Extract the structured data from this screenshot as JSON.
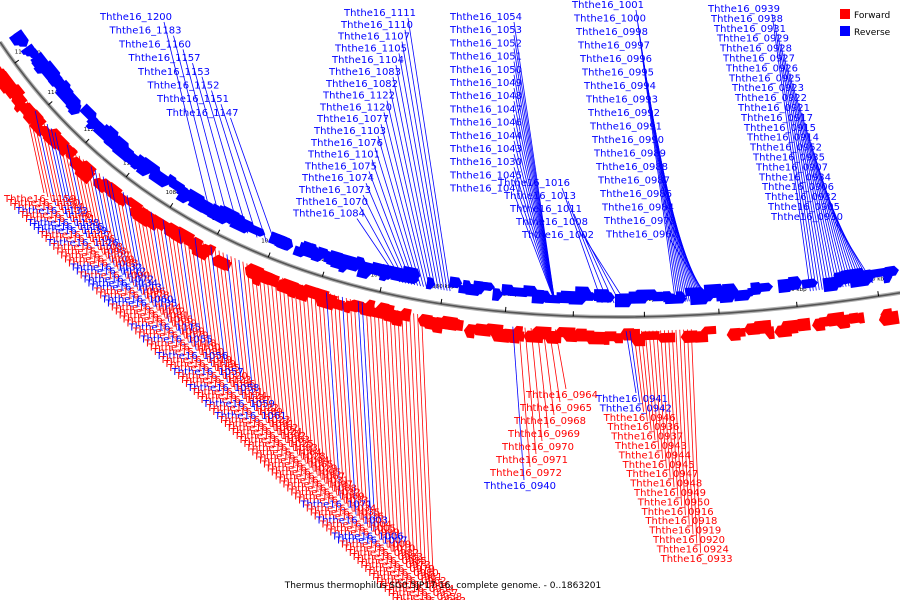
{
  "caption": "Thermus thermophilus SG0.5JP17-16, complete genome. - 0..1863201",
  "legend": [
    {
      "label": "Forward",
      "color": "#ff0000"
    },
    {
      "label": "Reverse",
      "color": "#0000ff"
    }
  ],
  "ticks": [
    "1160 kbp",
    "1140 kbp",
    "1120 kbp",
    "1100 kbp",
    "1080 kbp",
    "1060 kbp",
    "1040 kbp",
    "1020 kbp",
    "1000 kbp",
    "980 kbp",
    "960 kbp",
    "940 kbp",
    "920 kbp",
    "900 kbp",
    "880 kbp",
    "860 kbp"
  ],
  "labels": [
    {
      "t": "Ththe16_1200",
      "s": "R"
    },
    {
      "t": "Ththe16_1183",
      "s": "R"
    },
    {
      "t": "Ththe16_1160",
      "s": "R"
    },
    {
      "t": "Ththe16_1157",
      "s": "R"
    },
    {
      "t": "Ththe16_1153",
      "s": "R"
    },
    {
      "t": "Ththe16_1152",
      "s": "R"
    },
    {
      "t": "Ththe16_1151",
      "s": "R"
    },
    {
      "t": "Ththe16_1147",
      "s": "R"
    },
    {
      "t": "Ththe16_1111",
      "s": "R"
    },
    {
      "t": "Ththe16_1110",
      "s": "R"
    },
    {
      "t": "Ththe16_1107",
      "s": "R"
    },
    {
      "t": "Ththe16_1105",
      "s": "R"
    },
    {
      "t": "Ththe16_1104",
      "s": "R"
    },
    {
      "t": "Ththe16_1083",
      "s": "R"
    },
    {
      "t": "Ththe16_1082",
      "s": "R"
    },
    {
      "t": "Ththe16_1122",
      "s": "R"
    },
    {
      "t": "Ththe16_1120",
      "s": "R"
    },
    {
      "t": "Ththe16_1077",
      "s": "R"
    },
    {
      "t": "Ththe16_1103",
      "s": "R"
    },
    {
      "t": "Ththe16_1076",
      "s": "R"
    },
    {
      "t": "Ththe16_1101",
      "s": "R"
    },
    {
      "t": "Ththe16_1075",
      "s": "R"
    },
    {
      "t": "Ththe16_1074",
      "s": "R"
    },
    {
      "t": "Ththe16_1073",
      "s": "R"
    },
    {
      "t": "Ththe16_1070",
      "s": "R"
    },
    {
      "t": "Ththe16_1084",
      "s": "R"
    },
    {
      "t": "Ththe16_1054",
      "s": "R"
    },
    {
      "t": "Ththe16_1053",
      "s": "R"
    },
    {
      "t": "Ththe16_1052",
      "s": "R"
    },
    {
      "t": "Ththe16_1051",
      "s": "R"
    },
    {
      "t": "Ththe16_1050",
      "s": "R"
    },
    {
      "t": "Ththe16_1049",
      "s": "R"
    },
    {
      "t": "Ththe16_1048",
      "s": "R"
    },
    {
      "t": "Ththe16_1047",
      "s": "R"
    },
    {
      "t": "Ththe16_1046",
      "s": "R"
    },
    {
      "t": "Ththe16_1044",
      "s": "R"
    },
    {
      "t": "Ththe16_1043",
      "s": "R"
    },
    {
      "t": "Ththe16_1030",
      "s": "R"
    },
    {
      "t": "Ththe16_1045",
      "s": "R"
    },
    {
      "t": "Ththe16_1041",
      "s": "R"
    },
    {
      "t": "Ththe16_1016",
      "s": "R"
    },
    {
      "t": "Ththe16_1013",
      "s": "R"
    },
    {
      "t": "Ththe16_1011",
      "s": "R"
    },
    {
      "t": "Ththe16_1008",
      "s": "R"
    },
    {
      "t": "Ththe16_1002",
      "s": "R"
    },
    {
      "t": "Ththe16_1001",
      "s": "R"
    },
    {
      "t": "Ththe16_1000",
      "s": "R"
    },
    {
      "t": "Ththe16_0998",
      "s": "R"
    },
    {
      "t": "Ththe16_0997",
      "s": "R"
    },
    {
      "t": "Ththe16_0996",
      "s": "R"
    },
    {
      "t": "Ththe16_0995",
      "s": "R"
    },
    {
      "t": "Ththe16_0994",
      "s": "R"
    },
    {
      "t": "Ththe16_0993",
      "s": "R"
    },
    {
      "t": "Ththe16_0992",
      "s": "R"
    },
    {
      "t": "Ththe16_0991",
      "s": "R"
    },
    {
      "t": "Ththe16_0990",
      "s": "R"
    },
    {
      "t": "Ththe16_0989",
      "s": "R"
    },
    {
      "t": "Ththe16_0988",
      "s": "R"
    },
    {
      "t": "Ththe16_0987",
      "s": "R"
    },
    {
      "t": "Ththe16_0986",
      "s": "R"
    },
    {
      "t": "Ththe16_0984",
      "s": "R"
    },
    {
      "t": "Ththe16_0978",
      "s": "R"
    },
    {
      "t": "Ththe16_0967",
      "s": "R"
    },
    {
      "t": "Ththe16_0939",
      "s": "R"
    },
    {
      "t": "Ththe16_0938",
      "s": "R"
    },
    {
      "t": "Ththe16_0931",
      "s": "R"
    },
    {
      "t": "Ththe16_0929",
      "s": "R"
    },
    {
      "t": "Ththe16_0928",
      "s": "R"
    },
    {
      "t": "Ththe16_0927",
      "s": "R"
    },
    {
      "t": "Ththe16_0926",
      "s": "R"
    },
    {
      "t": "Ththe16_0925",
      "s": "R"
    },
    {
      "t": "Ththe16_0923",
      "s": "R"
    },
    {
      "t": "Ththe16_0922",
      "s": "R"
    },
    {
      "t": "Ththe16_0921",
      "s": "R"
    },
    {
      "t": "Ththe16_0917",
      "s": "R"
    },
    {
      "t": "Ththe16_0915",
      "s": "R"
    },
    {
      "t": "Ththe16_0914",
      "s": "R"
    },
    {
      "t": "Ththe16_0952",
      "s": "R"
    },
    {
      "t": "Ththe16_0935",
      "s": "R"
    },
    {
      "t": "Ththe16_0907",
      "s": "R"
    },
    {
      "t": "Ththe16_0934",
      "s": "R"
    },
    {
      "t": "Ththe16_0906",
      "s": "R"
    },
    {
      "t": "Ththe16_0932",
      "s": "R"
    },
    {
      "t": "Ththe16_0905",
      "s": "R"
    },
    {
      "t": "Ththe16_0930",
      "s": "R"
    },
    {
      "t": "Ththe16_1159",
      "s": "F"
    },
    {
      "t": "Ththe16_1150",
      "s": "F"
    },
    {
      "t": "Ththe16_1144",
      "s": "F"
    },
    {
      "t": "Ththe16_1133",
      "s": "R"
    },
    {
      "t": "Ththe16_1146",
      "s": "F"
    },
    {
      "t": "Ththe16_1121",
      "s": "F"
    },
    {
      "t": "Ththe16_1138",
      "s": "R"
    },
    {
      "t": "Ththe16_1116",
      "s": "R"
    },
    {
      "t": "Ththe16_1139",
      "s": "R"
    },
    {
      "t": "Ththe16_1117",
      "s": "F"
    },
    {
      "t": "Ththe16_1106",
      "s": "F"
    },
    {
      "t": "Ththe16_1126",
      "s": "R"
    },
    {
      "t": "Ththe16_1108",
      "s": "F"
    },
    {
      "t": "Ththe16_1098",
      "s": "F"
    },
    {
      "t": "Ththe16_1127",
      "s": "F"
    },
    {
      "t": "Ththe16_1109",
      "s": "F"
    },
    {
      "t": "Ththe16_1088",
      "s": "F"
    },
    {
      "t": "Ththe16_1132",
      "s": "R"
    },
    {
      "t": "Ththe16_1112",
      "s": "R"
    },
    {
      "t": "Ththe16_1090",
      "s": "F"
    },
    {
      "t": "Ththe16_1072",
      "s": "R"
    },
    {
      "t": "Ththe16_1134",
      "s": "R"
    },
    {
      "t": "Ththe16_1113",
      "s": "R"
    },
    {
      "t": "Ththe16_1096",
      "s": "F"
    },
    {
      "t": "Ththe16_1078",
      "s": "F"
    },
    {
      "t": "Ththe16_1060",
      "s": "R"
    },
    {
      "t": "Ththe16_1135",
      "s": "R"
    },
    {
      "t": "Ththe16_1114",
      "s": "F"
    },
    {
      "t": "Ththe16_1102",
      "s": "F"
    },
    {
      "t": "Ththe16_1081",
      "s": "F"
    },
    {
      "t": "Ththe16_1066",
      "s": "F"
    },
    {
      "t": "Ththe16_1039",
      "s": "F"
    },
    {
      "t": "Ththe16_1115",
      "s": "R"
    },
    {
      "t": "Ththe16_1099",
      "s": "F"
    },
    {
      "t": "Ththe16_1079",
      "s": "F"
    },
    {
      "t": "Ththe16_1055",
      "s": "R"
    },
    {
      "t": "Ththe16_1118",
      "s": "F"
    },
    {
      "t": "Ththe16_1100",
      "s": "F"
    },
    {
      "t": "Ththe16_1080",
      "s": "F"
    },
    {
      "t": "Ththe16_1056",
      "s": "R"
    },
    {
      "t": "Ththe16_1019",
      "s": "F"
    },
    {
      "t": "Ththe16_1119",
      "s": "F"
    },
    {
      "t": "Ththe16_1085",
      "s": "F"
    },
    {
      "t": "Ththe16_1057",
      "s": "R"
    },
    {
      "t": "Ththe16_1020",
      "s": "F"
    },
    {
      "t": "Ththe16_1123",
      "s": "F"
    },
    {
      "t": "Ththe16_1086",
      "s": "F"
    },
    {
      "t": "Ththe16_1058",
      "s": "R"
    },
    {
      "t": "Ththe16_1021",
      "s": "F"
    },
    {
      "t": "Ththe16_1124",
      "s": "F"
    },
    {
      "t": "Ththe16_1087",
      "s": "F"
    },
    {
      "t": "Ththe16_1059",
      "s": "R"
    },
    {
      "t": "Ththe16_1022",
      "s": "F"
    },
    {
      "t": "Ththe16_1089",
      "s": "F"
    },
    {
      "t": "Ththe16_1061",
      "s": "R"
    },
    {
      "t": "Ththe16_1023",
      "s": "F"
    },
    {
      "t": "Ththe16_1091",
      "s": "F"
    },
    {
      "t": "Ththe16_1062",
      "s": "F"
    },
    {
      "t": "Ththe16_1024",
      "s": "F"
    },
    {
      "t": "Ththe16_1092",
      "s": "F"
    },
    {
      "t": "Ththe16_1063",
      "s": "F"
    },
    {
      "t": "Ththe16_1025",
      "s": "F"
    },
    {
      "t": "Ththe16_1093",
      "s": "F"
    },
    {
      "t": "Ththe16_1064",
      "s": "F"
    },
    {
      "t": "Ththe16_1028",
      "s": "F"
    },
    {
      "t": "Ththe16_1094",
      "s": "F"
    },
    {
      "t": "Ththe16_1065",
      "s": "F"
    },
    {
      "t": "Ththe16_1029",
      "s": "F"
    },
    {
      "t": "Ththe16_1095",
      "s": "F"
    },
    {
      "t": "Ththe16_1067",
      "s": "F"
    },
    {
      "t": "Ththe16_1031",
      "s": "F"
    },
    {
      "t": "Ththe16_1097",
      "s": "F"
    },
    {
      "t": "Ththe16_1068",
      "s": "F"
    },
    {
      "t": "Ththe16_1032",
      "s": "F"
    },
    {
      "t": "Ththe16_1069",
      "s": "F"
    },
    {
      "t": "Ththe16_1033",
      "s": "F"
    },
    {
      "t": "Ththe16_1071",
      "s": "R"
    },
    {
      "t": "Ththe16_1034",
      "s": "F"
    },
    {
      "t": "Ththe16_1035",
      "s": "F"
    },
    {
      "t": "Ththe16_1036",
      "s": "F"
    },
    {
      "t": "Ththe16_1003",
      "s": "R"
    },
    {
      "t": "Ththe16_1004",
      "s": "F"
    },
    {
      "t": "Ththe16_1005",
      "s": "F"
    },
    {
      "t": "Ththe16_0999",
      "s": "F"
    },
    {
      "t": "Ththe16_1006",
      "s": "R"
    },
    {
      "t": "Ththe16_1007",
      "s": "R"
    },
    {
      "t": "Ththe16_1009",
      "s": "F"
    },
    {
      "t": "Ththe16_1010",
      "s": "F"
    },
    {
      "t": "Ththe16_0982",
      "s": "F"
    },
    {
      "t": "Ththe16_0983",
      "s": "F"
    },
    {
      "t": "Ththe16_0985",
      "s": "F"
    },
    {
      "t": "Ththe16_0973",
      "s": "F"
    },
    {
      "t": "Ththe16_0979",
      "s": "F"
    },
    {
      "t": "Ththe16_0980",
      "s": "F"
    },
    {
      "t": "Ththe16_0961",
      "s": "F"
    },
    {
      "t": "Ththe16_0962",
      "s": "F"
    },
    {
      "t": "Ththe16_0966",
      "s": "F"
    },
    {
      "t": "Ththe16_0954",
      "s": "F"
    },
    {
      "t": "Ththe16_0957",
      "s": "F"
    },
    {
      "t": "Ththe16_0958",
      "s": "F"
    },
    {
      "t": "Ththe16_0963",
      "s": "F"
    },
    {
      "t": "Ththe16_0964",
      "s": "F"
    },
    {
      "t": "Ththe16_0965",
      "s": "F"
    },
    {
      "t": "Ththe16_0968",
      "s": "F"
    },
    {
      "t": "Ththe16_0969",
      "s": "F"
    },
    {
      "t": "Ththe16_0970",
      "s": "F"
    },
    {
      "t": "Ththe16_0971",
      "s": "F"
    },
    {
      "t": "Ththe16_0972",
      "s": "F"
    },
    {
      "t": "Ththe16_0940",
      "s": "R"
    },
    {
      "t": "Ththe16_0941",
      "s": "R"
    },
    {
      "t": "Ththe16_0942",
      "s": "R"
    },
    {
      "t": "Ththe16_0946",
      "s": "F"
    },
    {
      "t": "Ththe16_0936",
      "s": "F"
    },
    {
      "t": "Ththe16_0937",
      "s": "F"
    },
    {
      "t": "Ththe16_0943",
      "s": "F"
    },
    {
      "t": "Ththe16_0944",
      "s": "F"
    },
    {
      "t": "Ththe16_0945",
      "s": "F"
    },
    {
      "t": "Ththe16_0947",
      "s": "F"
    },
    {
      "t": "Ththe16_0948",
      "s": "F"
    },
    {
      "t": "Ththe16_0949",
      "s": "F"
    },
    {
      "t": "Ththe16_0950",
      "s": "F"
    },
    {
      "t": "Ththe16_0916",
      "s": "F"
    },
    {
      "t": "Ththe16_0918",
      "s": "F"
    },
    {
      "t": "Ththe16_0919",
      "s": "F"
    },
    {
      "t": "Ththe16_0920",
      "s": "F"
    },
    {
      "t": "Ththe16_0924",
      "s": "F"
    },
    {
      "t": "Ththe16_0933",
      "s": "F"
    }
  ]
}
